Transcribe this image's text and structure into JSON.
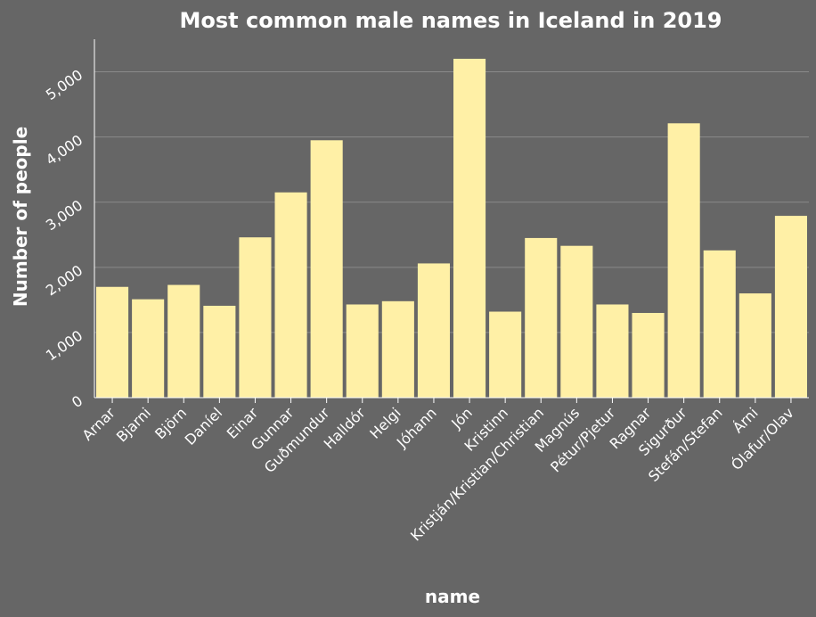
{
  "chart_data": {
    "type": "bar",
    "title": "Most common male names in Iceland in 2019",
    "xlabel": "name",
    "ylabel": "Number of people",
    "ylim": [
      0,
      5500
    ],
    "yticks": [
      0,
      1000,
      2000,
      3000,
      4000,
      5000
    ],
    "ytick_labels": [
      "0",
      "1,000",
      "2,000",
      "3,000",
      "4,000",
      "5,000"
    ],
    "grid": true,
    "categories": [
      "Arnar",
      "Bjarni",
      "Björn",
      "Daníel",
      "Einar",
      "Gunnar",
      "Guðmundur",
      "Halldór",
      "Helgi",
      "Jóhann",
      "Jón",
      "Kristinn",
      "Kristján/Kristian/Christian",
      "Magnús",
      "Pétur/Pjetur",
      "Ragnar",
      "Sigurður",
      "Stefán/Stefan",
      "Árni",
      "Ólafur/Olav"
    ],
    "values": [
      1700,
      1510,
      1730,
      1410,
      2460,
      3150,
      3950,
      1430,
      1480,
      2060,
      5200,
      1320,
      2450,
      2330,
      1430,
      1300,
      4210,
      2260,
      1600,
      2790
    ],
    "colors": {
      "background": "#666666",
      "bar": "#fff0a6",
      "text": "#ffffff",
      "grid": "#8a8a8a"
    }
  }
}
